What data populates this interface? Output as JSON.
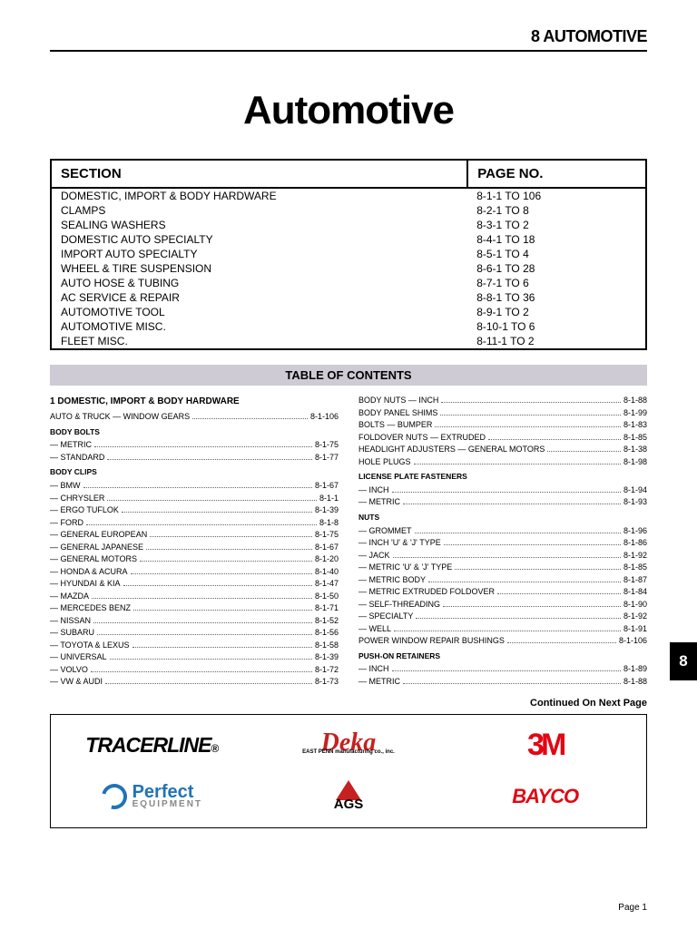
{
  "header": {
    "label": "8 AUTOMOTIVE",
    "title": "Automotive"
  },
  "side_tab": "8",
  "section_table": {
    "columns": [
      "SECTION",
      "PAGE NO."
    ],
    "rows": [
      [
        "DOMESTIC, IMPORT & BODY HARDWARE",
        "8-1-1 TO 106"
      ],
      [
        "CLAMPS",
        "8-2-1 TO 8"
      ],
      [
        "SEALING WASHERS",
        "8-3-1 TO 2"
      ],
      [
        "DOMESTIC AUTO SPECIALTY",
        "8-4-1 TO 18"
      ],
      [
        "IMPORT AUTO SPECIALTY",
        "8-5-1 TO 4"
      ],
      [
        "WHEEL & TIRE SUSPENSION",
        "8-6-1 TO 28"
      ],
      [
        "AUTO HOSE & TUBING",
        "8-7-1 TO 6"
      ],
      [
        "AC SERVICE & REPAIR",
        "8-8-1 TO 36"
      ],
      [
        "AUTOMOTIVE TOOL",
        "8-9-1 TO 2"
      ],
      [
        "AUTOMOTIVE MISC.",
        "8-10-1 TO 6"
      ],
      [
        "FLEET MISC.",
        "8-11-1 TO 2"
      ]
    ]
  },
  "toc_banner": "TABLE OF CONTENTS",
  "toc": {
    "left": [
      {
        "type": "h1",
        "text": "1  DOMESTIC, IMPORT & BODY HARDWARE"
      },
      {
        "type": "row",
        "label": "AUTO & TRUCK — WINDOW GEARS",
        "page": "8-1-106"
      },
      {
        "type": "h2",
        "text": "BODY BOLTS"
      },
      {
        "type": "row",
        "label": "— METRIC",
        "page": "8-1-75"
      },
      {
        "type": "row",
        "label": "— STANDARD",
        "page": "8-1-77"
      },
      {
        "type": "h2",
        "text": "BODY CLIPS"
      },
      {
        "type": "row",
        "label": "— BMW",
        "page": "8-1-67"
      },
      {
        "type": "row",
        "label": "— CHRYSLER",
        "page": "8-1-1"
      },
      {
        "type": "row",
        "label": "— ERGO TUFLOK",
        "page": "8-1-39"
      },
      {
        "type": "row",
        "label": "— FORD",
        "page": "8-1-8"
      },
      {
        "type": "row",
        "label": "— GENERAL EUROPEAN",
        "page": "8-1-75"
      },
      {
        "type": "row",
        "label": "— GENERAL JAPANESE",
        "page": "8-1-67"
      },
      {
        "type": "row",
        "label": "— GENERAL MOTORS",
        "page": "8-1-20"
      },
      {
        "type": "row",
        "label": "— HONDA & ACURA",
        "page": "8-1-40"
      },
      {
        "type": "row",
        "label": "— HYUNDAI & KIA",
        "page": "8-1-47"
      },
      {
        "type": "row",
        "label": "— MAZDA",
        "page": "8-1-50"
      },
      {
        "type": "row",
        "label": "— MERCEDES BENZ",
        "page": "8-1-71"
      },
      {
        "type": "row",
        "label": "— NISSAN",
        "page": "8-1-52"
      },
      {
        "type": "row",
        "label": "— SUBARU",
        "page": "8-1-56"
      },
      {
        "type": "row",
        "label": "— TOYOTA & LEXUS",
        "page": "8-1-58"
      },
      {
        "type": "row",
        "label": "— UNIVERSAL",
        "page": "8-1-39"
      },
      {
        "type": "row",
        "label": "— VOLVO",
        "page": "8-1-72"
      },
      {
        "type": "row",
        "label": "— VW & AUDI",
        "page": "8-1-73"
      }
    ],
    "right": [
      {
        "type": "row",
        "label": "BODY NUTS — INCH",
        "page": "8-1-88"
      },
      {
        "type": "row",
        "label": "BODY PANEL SHIMS",
        "page": "8-1-99"
      },
      {
        "type": "row",
        "label": "BOLTS — BUMPER",
        "page": "8-1-83"
      },
      {
        "type": "row",
        "label": "FOLDOVER NUTS — EXTRUDED",
        "page": "8-1-85"
      },
      {
        "type": "row",
        "label": "HEADLIGHT ADJUSTERS — GENERAL MOTORS",
        "page": "8-1-38"
      },
      {
        "type": "row",
        "label": "HOLE PLUGS",
        "page": "8-1-98"
      },
      {
        "type": "h2",
        "text": "LICENSE PLATE FASTENERS"
      },
      {
        "type": "row",
        "label": "— INCH",
        "page": "8-1-94"
      },
      {
        "type": "row",
        "label": "— METRIC",
        "page": "8-1-93"
      },
      {
        "type": "h2",
        "text": "NUTS"
      },
      {
        "type": "row",
        "label": "— GROMMET",
        "page": "8-1-96"
      },
      {
        "type": "row",
        "label": "— INCH 'U' & 'J' TYPE",
        "page": "8-1-86"
      },
      {
        "type": "row",
        "label": "— JACK",
        "page": "8-1-92"
      },
      {
        "type": "row",
        "label": "— METRIC 'U' & 'J' TYPE",
        "page": "8-1-85"
      },
      {
        "type": "row",
        "label": "— METRIC BODY",
        "page": "8-1-87"
      },
      {
        "type": "row",
        "label": "— METRIC EXTRUDED FOLDOVER",
        "page": "8-1-84"
      },
      {
        "type": "row",
        "label": "— SELF-THREADING",
        "page": "8-1-90"
      },
      {
        "type": "row",
        "label": "— SPECIALTY",
        "page": "8-1-92"
      },
      {
        "type": "row",
        "label": "— WELL",
        "page": "8-1-91"
      },
      {
        "type": "row",
        "label": "POWER WINDOW REPAIR BUSHINGS",
        "page": "8-1-106"
      },
      {
        "type": "h2",
        "text": "PUSH-ON RETAINERS"
      },
      {
        "type": "row",
        "label": "— INCH",
        "page": "8-1-89"
      },
      {
        "type": "row",
        "label": "— METRIC",
        "page": "8-1-88"
      }
    ]
  },
  "continued": "Continued On Next Page",
  "logos": {
    "tracer": "TRACERLINE",
    "deka": "Deka",
    "deka_sub": "EAST PENN manufacturing co., inc.",
    "three_m": "3M",
    "perfect": "Perfect",
    "perfect_sub": "EQUIPMENT",
    "ags": "AGS",
    "bayco": "BAYCO"
  },
  "footer": "Page 1",
  "colors": {
    "banner_bg": "#cfcbd4",
    "red": "#e30613",
    "dark_red": "#c62020",
    "blue": "#2173b8"
  }
}
